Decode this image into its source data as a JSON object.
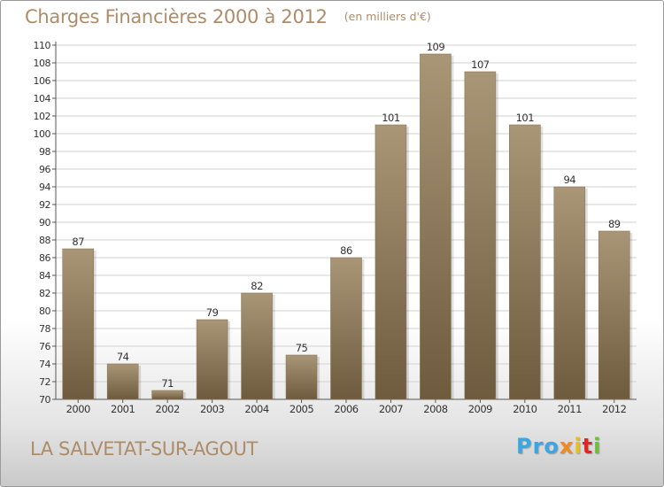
{
  "title": "Charges Financières 2000 à 2012",
  "subtitle": "(en milliers d'€)",
  "location": "LA SALVETAT-SUR-AGOUT",
  "logo": {
    "text": "Proxiti",
    "parts": [
      "Pro",
      "x",
      "i",
      "t",
      "i"
    ]
  },
  "colors": {
    "title": "#ad8c69",
    "bar_light": "#a99677",
    "bar_dark": "#6e5b3e",
    "grid": "#d2d2d2",
    "axis_text": "#333333"
  },
  "chart_data": {
    "type": "bar",
    "categories": [
      "2000",
      "2001",
      "2002",
      "2003",
      "2004",
      "2005",
      "2006",
      "2007",
      "2008",
      "2009",
      "2010",
      "2011",
      "2012"
    ],
    "values": [
      87,
      74,
      71,
      79,
      82,
      75,
      86,
      101,
      109,
      107,
      101,
      94,
      89
    ],
    "ylim": [
      70,
      110
    ],
    "yticks": [
      70,
      72,
      74,
      76,
      78,
      80,
      82,
      84,
      86,
      88,
      90,
      92,
      94,
      96,
      98,
      100,
      102,
      104,
      106,
      108,
      110
    ],
    "data_labels": true,
    "grid": true,
    "legend": "none"
  }
}
